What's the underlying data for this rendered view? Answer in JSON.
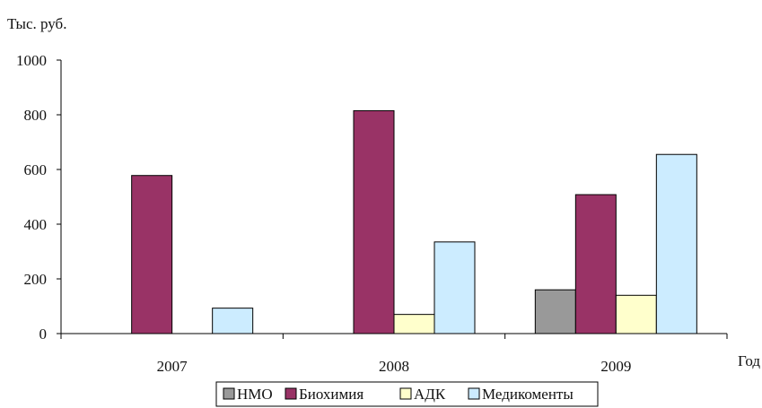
{
  "chart_data": {
    "type": "bar",
    "categories": [
      "2007",
      "2008",
      "2009"
    ],
    "series": [
      {
        "name": "НМО",
        "values": [
          0,
          0,
          160
        ],
        "color": "#999999"
      },
      {
        "name": "Биохимия",
        "values": [
          578,
          815,
          508
        ],
        "color": "#993366"
      },
      {
        "name": "АДК",
        "values": [
          0,
          70,
          140
        ],
        "color": "#FFFFCC"
      },
      {
        "name": "Медикоменты",
        "values": [
          93,
          335,
          655
        ],
        "color": "#CCECFF"
      }
    ],
    "ylabel": "Тыс. руб.",
    "xlabel": "Год",
    "ylim": [
      0,
      1000
    ],
    "yticks": [
      0,
      200,
      400,
      600,
      800,
      1000
    ],
    "grid": false,
    "legend_position": "bottom"
  }
}
